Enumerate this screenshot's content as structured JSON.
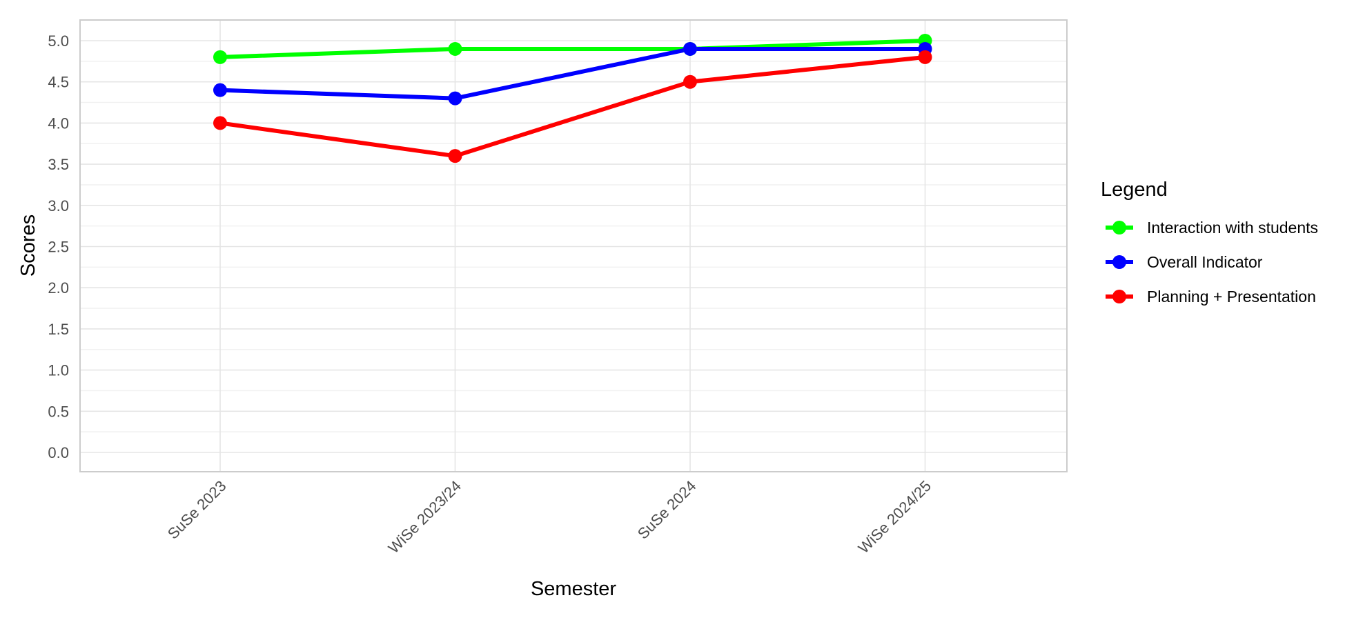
{
  "chart_data": {
    "type": "line",
    "title": "",
    "xlabel": "Semester",
    "ylabel": "Scores",
    "categories": [
      "SuSe 2023",
      "WiSe 2023/24",
      "SuSe 2024",
      "WiSe 2024/25"
    ],
    "ylim": [
      0,
      5
    ],
    "yticks": [
      "0.0",
      "0.5",
      "1.0",
      "1.5",
      "2.0",
      "2.5",
      "3.0",
      "3.5",
      "4.0",
      "4.5",
      "5.0"
    ],
    "grid": true,
    "legend": {
      "title": "Legend",
      "position": "right"
    },
    "series": [
      {
        "name": "Interaction with students",
        "color": "#00ff00",
        "values": [
          4.8,
          4.9,
          4.9,
          5.0
        ]
      },
      {
        "name": "Overall Indicator",
        "color": "#0000ff",
        "values": [
          4.4,
          4.3,
          4.9,
          4.9
        ]
      },
      {
        "name": "Planning + Presentation",
        "color": "#ff0000",
        "values": [
          4.0,
          3.6,
          4.5,
          4.8
        ]
      }
    ]
  },
  "style": {
    "grid_major": "#e5e5e5",
    "grid_minor": "#f1f1f1",
    "panel_border": "#cccccc"
  }
}
